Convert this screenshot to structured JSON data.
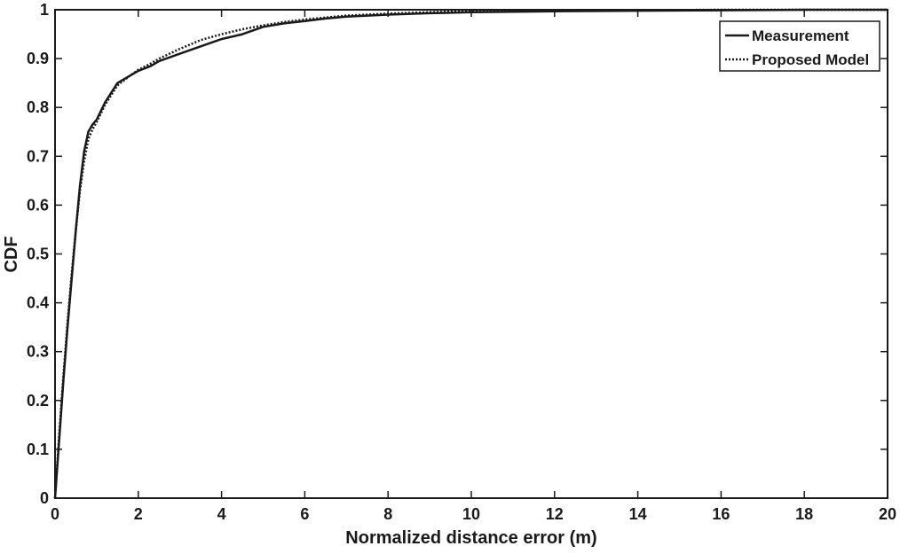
{
  "chart_data": {
    "type": "line",
    "title": "",
    "xlabel": "Normalized distance error (m)",
    "ylabel": "CDF",
    "xlim": [
      0,
      20
    ],
    "ylim": [
      0,
      1
    ],
    "x_ticks": [
      "0",
      "2",
      "4",
      "6",
      "8",
      "10",
      "12",
      "14",
      "16",
      "18",
      "20"
    ],
    "y_ticks": [
      "0",
      "0.1",
      "0.2",
      "0.3",
      "0.4",
      "0.5",
      "0.6",
      "0.7",
      "0.8",
      "0.9",
      "1"
    ],
    "grid": false,
    "legend_position": "top-right",
    "series": [
      {
        "name": "Measurement",
        "style": "solid",
        "color": "#1a1a1a",
        "x": [
          0,
          0.1,
          0.2,
          0.3,
          0.4,
          0.5,
          0.6,
          0.7,
          0.8,
          0.9,
          1.0,
          1.2,
          1.5,
          1.8,
          2.0,
          2.3,
          2.5,
          3.0,
          3.5,
          4.0,
          4.5,
          5.0,
          5.5,
          6.0,
          6.5,
          7.0,
          8.0,
          9.0,
          10.0,
          12.0,
          14.0,
          16.0,
          18.0,
          20.0
        ],
        "values": [
          0,
          0.12,
          0.24,
          0.35,
          0.45,
          0.55,
          0.64,
          0.71,
          0.75,
          0.765,
          0.775,
          0.81,
          0.85,
          0.865,
          0.875,
          0.885,
          0.895,
          0.91,
          0.925,
          0.94,
          0.95,
          0.965,
          0.972,
          0.977,
          0.982,
          0.986,
          0.99,
          0.993,
          0.995,
          0.997,
          0.998,
          0.999,
          1.0,
          1.0
        ]
      },
      {
        "name": "Proposed Model",
        "style": "dotted",
        "color": "#1a1a1a",
        "x": [
          0,
          0.1,
          0.2,
          0.3,
          0.4,
          0.5,
          0.6,
          0.7,
          0.8,
          0.9,
          1.0,
          1.2,
          1.5,
          1.8,
          2.0,
          2.3,
          2.5,
          3.0,
          3.5,
          4.0,
          4.5,
          5.0,
          5.5,
          6.0,
          6.5,
          7.0,
          8.0,
          9.0,
          10.0,
          12.0,
          14.0,
          16.0,
          18.0,
          20.0
        ],
        "values": [
          0,
          0.13,
          0.25,
          0.36,
          0.46,
          0.55,
          0.63,
          0.69,
          0.735,
          0.755,
          0.77,
          0.805,
          0.845,
          0.865,
          0.877,
          0.89,
          0.9,
          0.92,
          0.938,
          0.95,
          0.96,
          0.968,
          0.975,
          0.98,
          0.984,
          0.988,
          0.992,
          0.995,
          0.997,
          0.998,
          0.999,
          1.0,
          1.0,
          1.0
        ]
      }
    ]
  }
}
